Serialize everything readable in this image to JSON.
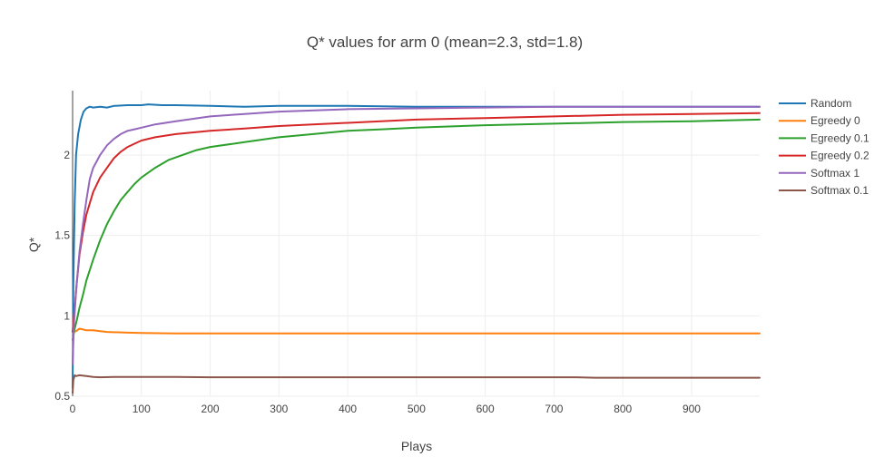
{
  "chart_data": {
    "type": "line",
    "title": "Q* values for arm 0 (mean=2.3, std=1.8)",
    "xlabel": "Plays",
    "ylabel": "Q*",
    "xlim": [
      0,
      999
    ],
    "ylim": [
      0.5,
      2.4
    ],
    "xticks": [
      0,
      100,
      200,
      300,
      400,
      500,
      600,
      700,
      800,
      900
    ],
    "yticks": [
      0.5,
      1,
      1.5,
      2
    ],
    "xtick_labels": [
      "0",
      "100",
      "200",
      "300",
      "400",
      "500",
      "600",
      "700",
      "800",
      "900"
    ],
    "ytick_labels": [
      "0.5",
      "1",
      "1.5",
      "2"
    ],
    "grid": true,
    "legend_position": "top-right",
    "series": [
      {
        "name": "Random",
        "color": "#1f77b4",
        "x": [
          0,
          1,
          3,
          5,
          8,
          12,
          16,
          20,
          25,
          30,
          40,
          50,
          60,
          80,
          100,
          110,
          130,
          150,
          200,
          250,
          300,
          400,
          500,
          600,
          700,
          800,
          900,
          999
        ],
        "y": [
          0.55,
          1.2,
          1.7,
          2.0,
          2.13,
          2.22,
          2.27,
          2.29,
          2.3,
          2.295,
          2.3,
          2.295,
          2.305,
          2.31,
          2.31,
          2.315,
          2.31,
          2.31,
          2.305,
          2.3,
          2.305,
          2.305,
          2.3,
          2.3,
          2.3,
          2.3,
          2.3,
          2.3
        ]
      },
      {
        "name": "Egreedy 0",
        "color": "#ff7f0e",
        "x": [
          0,
          2,
          5,
          10,
          15,
          20,
          30,
          40,
          50,
          80,
          100,
          150,
          200,
          300,
          500,
          700,
          999
        ],
        "y": [
          0.88,
          0.9,
          0.905,
          0.92,
          0.915,
          0.91,
          0.91,
          0.905,
          0.9,
          0.895,
          0.893,
          0.89,
          0.89,
          0.89,
          0.89,
          0.89,
          0.89
        ]
      },
      {
        "name": "Egreedy 0.1",
        "color": "#2ca02c",
        "x": [
          0,
          3,
          6,
          10,
          15,
          20,
          30,
          40,
          50,
          60,
          70,
          80,
          90,
          100,
          120,
          140,
          160,
          180,
          200,
          250,
          300,
          350,
          400,
          450,
          500,
          600,
          700,
          800,
          900,
          999
        ],
        "y": [
          0.85,
          0.92,
          0.97,
          1.05,
          1.13,
          1.22,
          1.35,
          1.47,
          1.57,
          1.65,
          1.72,
          1.77,
          1.82,
          1.86,
          1.92,
          1.97,
          2.0,
          2.03,
          2.05,
          2.08,
          2.11,
          2.13,
          2.15,
          2.16,
          2.17,
          2.185,
          2.195,
          2.205,
          2.21,
          2.22
        ]
      },
      {
        "name": "Egreedy 0.2",
        "color": "#d62728",
        "x": [
          0,
          3,
          6,
          10,
          15,
          20,
          25,
          30,
          40,
          50,
          60,
          70,
          80,
          90,
          100,
          120,
          150,
          200,
          250,
          300,
          400,
          500,
          600,
          700,
          800,
          900,
          999
        ],
        "y": [
          0.9,
          1.05,
          1.2,
          1.38,
          1.52,
          1.63,
          1.7,
          1.77,
          1.86,
          1.92,
          1.98,
          2.02,
          2.05,
          2.07,
          2.09,
          2.11,
          2.13,
          2.15,
          2.165,
          2.18,
          2.2,
          2.22,
          2.23,
          2.24,
          2.25,
          2.255,
          2.26
        ]
      },
      {
        "name": "Softmax 1",
        "color": "#9467bd",
        "x": [
          0,
          2,
          5,
          10,
          15,
          20,
          25,
          30,
          40,
          50,
          60,
          70,
          80,
          90,
          100,
          120,
          150,
          200,
          250,
          300,
          400,
          500,
          600,
          700,
          800,
          900,
          999
        ],
        "y": [
          0.7,
          0.95,
          1.15,
          1.4,
          1.57,
          1.72,
          1.85,
          1.92,
          2.0,
          2.06,
          2.1,
          2.13,
          2.15,
          2.16,
          2.17,
          2.19,
          2.21,
          2.24,
          2.255,
          2.27,
          2.285,
          2.29,
          2.295,
          2.3,
          2.3,
          2.3,
          2.3
        ]
      },
      {
        "name": "Softmax 0.1",
        "color": "#8c564b",
        "x": [
          0,
          1,
          3,
          5,
          10,
          20,
          30,
          40,
          60,
          100,
          150,
          200,
          300,
          400,
          600,
          730,
          760,
          850,
          999
        ],
        "y": [
          0.52,
          0.6,
          0.63,
          0.625,
          0.63,
          0.625,
          0.62,
          0.618,
          0.62,
          0.62,
          0.62,
          0.618,
          0.618,
          0.618,
          0.618,
          0.618,
          0.615,
          0.615,
          0.615
        ]
      }
    ]
  }
}
